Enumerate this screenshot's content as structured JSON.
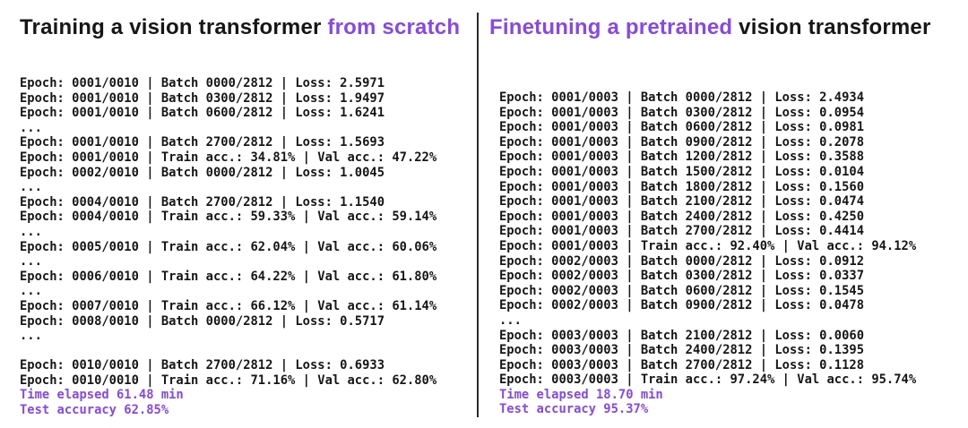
{
  "page": {
    "background": "#ffffff",
    "text_color": "#161616",
    "accent_purple": "#8847e8",
    "divider_color": "#2b2b2b"
  },
  "left_panel": {
    "title_parts": [
      {
        "text": "Training a vision transformer ",
        "purple": false
      },
      {
        "text": "from scratch",
        "purple": true
      }
    ],
    "console_lines": [
      {
        "text": "Epoch: 0001/0010 | Batch 0000/2812 | Loss: 2.5971",
        "purple": false
      },
      {
        "text": "Epoch: 0001/0010 | Batch 0300/2812 | Loss: 1.9497",
        "purple": false
      },
      {
        "text": "Epoch: 0001/0010 | Batch 0600/2812 | Loss: 1.6241",
        "purple": false
      },
      {
        "text": "...",
        "purple": false
      },
      {
        "text": "Epoch: 0001/0010 | Batch 2700/2812 | Loss: 1.5693",
        "purple": false
      },
      {
        "text": "Epoch: 0001/0010 | Train acc.: 34.81% | Val acc.: 47.22%",
        "purple": false
      },
      {
        "text": "Epoch: 0002/0010 | Batch 0000/2812 | Loss: 1.0045",
        "purple": false
      },
      {
        "text": "...",
        "purple": false
      },
      {
        "text": "Epoch: 0004/0010 | Batch 2700/2812 | Loss: 1.1540",
        "purple": false
      },
      {
        "text": "Epoch: 0004/0010 | Train acc.: 59.33% | Val acc.: 59.14%",
        "purple": false
      },
      {
        "text": "...",
        "purple": false
      },
      {
        "text": "Epoch: 0005/0010 | Train acc.: 62.04% | Val acc.: 60.06%",
        "purple": false
      },
      {
        "text": "...",
        "purple": false
      },
      {
        "text": "Epoch: 0006/0010 | Train acc.: 64.22% | Val acc.: 61.80%",
        "purple": false
      },
      {
        "text": "...",
        "purple": false
      },
      {
        "text": "Epoch: 0007/0010 | Train acc.: 66.12% | Val acc.: 61.14%",
        "purple": false
      },
      {
        "text": "Epoch: 0008/0010 | Batch 0000/2812 | Loss: 0.5717",
        "purple": false
      },
      {
        "text": "...",
        "purple": false
      },
      {
        "text": "",
        "purple": false
      },
      {
        "text": "Epoch: 0010/0010 | Batch 2700/2812 | Loss: 0.6933",
        "purple": false
      },
      {
        "text": "Epoch: 0010/0010 | Train acc.: 71.16% | Val acc.: 62.80%",
        "purple": false
      },
      {
        "text": "Time elapsed 61.48 min",
        "purple": true
      },
      {
        "text": "Test accuracy 62.85%",
        "purple": true
      }
    ]
  },
  "right_panel": {
    "title_parts": [
      {
        "text": "Finetuning a pretrained ",
        "purple": true
      },
      {
        "text": "vision transformer",
        "purple": false
      }
    ],
    "console_lines": [
      {
        "text": "Epoch: 0001/0003 | Batch 0000/2812 | Loss: 2.4934",
        "purple": false
      },
      {
        "text": "Epoch: 0001/0003 | Batch 0300/2812 | Loss: 0.0954",
        "purple": false
      },
      {
        "text": "Epoch: 0001/0003 | Batch 0600/2812 | Loss: 0.0981",
        "purple": false
      },
      {
        "text": "Epoch: 0001/0003 | Batch 0900/2812 | Loss: 0.2078",
        "purple": false
      },
      {
        "text": "Epoch: 0001/0003 | Batch 1200/2812 | Loss: 0.3588",
        "purple": false
      },
      {
        "text": "Epoch: 0001/0003 | Batch 1500/2812 | Loss: 0.0104",
        "purple": false
      },
      {
        "text": "Epoch: 0001/0003 | Batch 1800/2812 | Loss: 0.1560",
        "purple": false
      },
      {
        "text": "Epoch: 0001/0003 | Batch 2100/2812 | Loss: 0.0474",
        "purple": false
      },
      {
        "text": "Epoch: 0001/0003 | Batch 2400/2812 | Loss: 0.4250",
        "purple": false
      },
      {
        "text": "Epoch: 0001/0003 | Batch 2700/2812 | Loss: 0.4414",
        "purple": false
      },
      {
        "text": "Epoch: 0001/0003 | Train acc.: 92.40% | Val acc.: 94.12%",
        "purple": false
      },
      {
        "text": "Epoch: 0002/0003 | Batch 0000/2812 | Loss: 0.0912",
        "purple": false
      },
      {
        "text": "Epoch: 0002/0003 | Batch 0300/2812 | Loss: 0.0337",
        "purple": false
      },
      {
        "text": "Epoch: 0002/0003 | Batch 0600/2812 | Loss: 0.1545",
        "purple": false
      },
      {
        "text": "Epoch: 0002/0003 | Batch 0900/2812 | Loss: 0.0478",
        "purple": false
      },
      {
        "text": "...",
        "purple": false
      },
      {
        "text": "Epoch: 0003/0003 | Batch 2100/2812 | Loss: 0.0060",
        "purple": false
      },
      {
        "text": "Epoch: 0003/0003 | Batch 2400/2812 | Loss: 0.1395",
        "purple": false
      },
      {
        "text": "Epoch: 0003/0003 | Batch 2700/2812 | Loss: 0.1128",
        "purple": false
      },
      {
        "text": "Epoch: 0003/0003 | Train acc.: 97.24% | Val acc.: 95.74%",
        "purple": false
      },
      {
        "text": "Time elapsed 18.70 min",
        "purple": true
      },
      {
        "text": "Test accuracy 95.37%",
        "purple": true
      }
    ]
  }
}
